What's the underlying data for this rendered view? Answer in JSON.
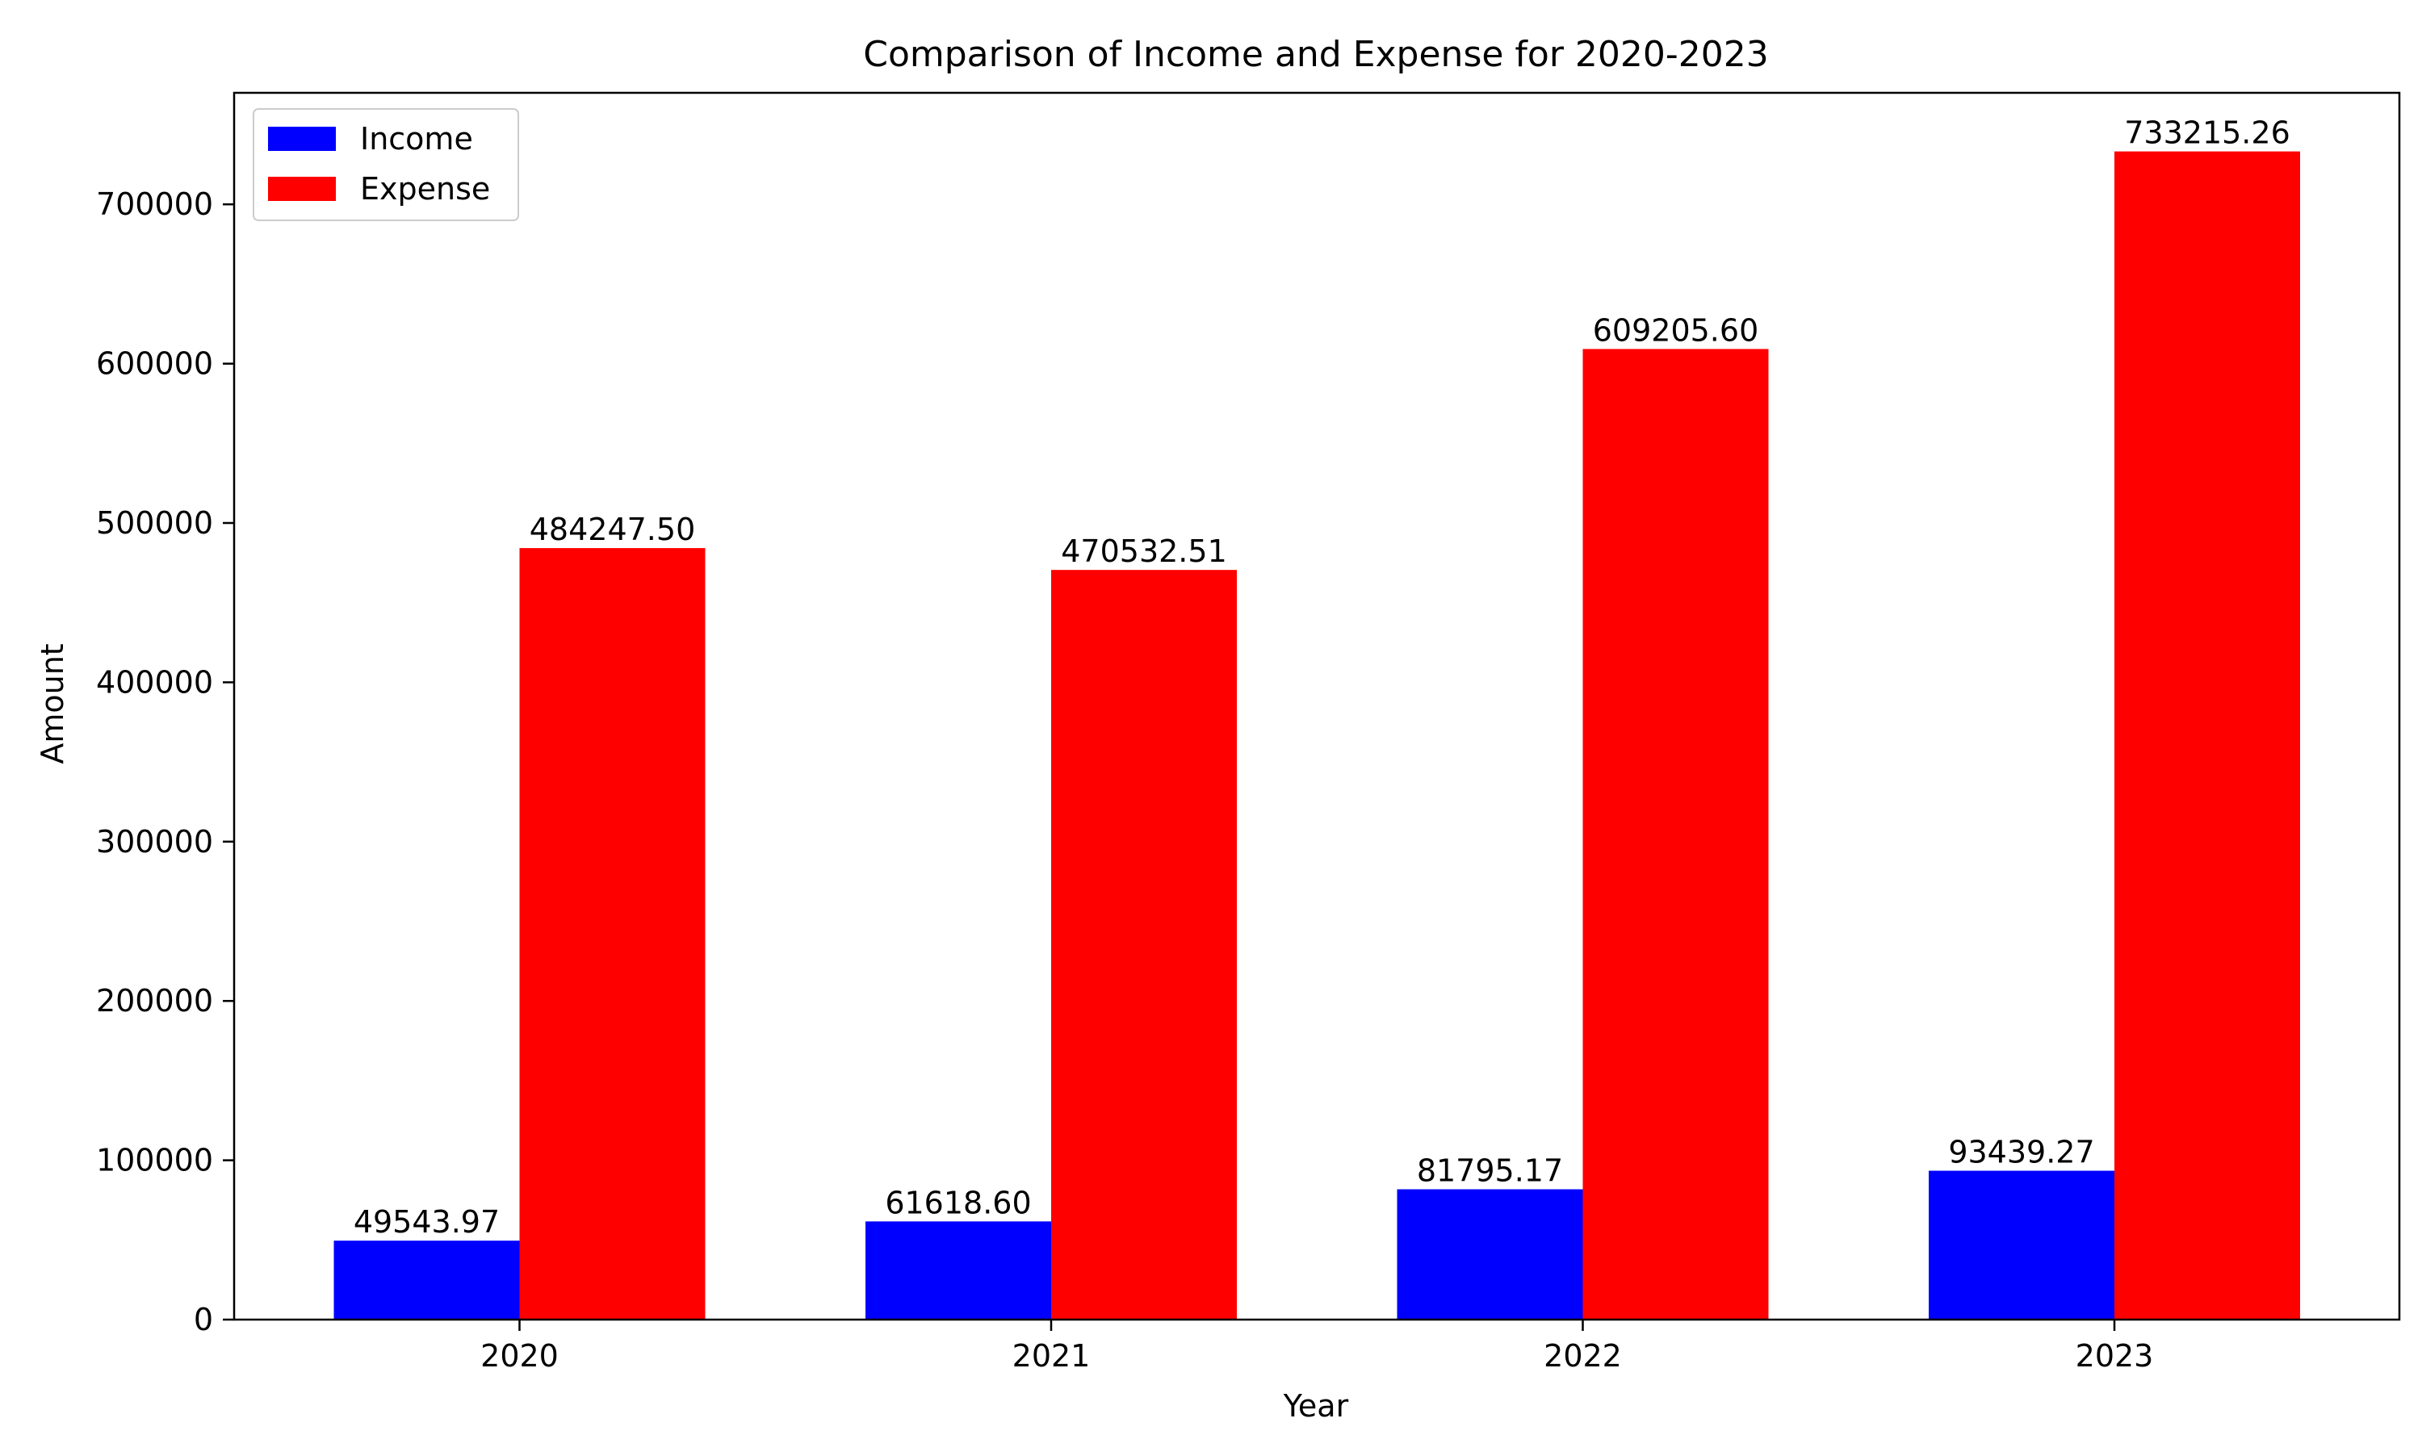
{
  "chart_data": {
    "type": "bar",
    "title": "Comparison of Income and Expense for 2020-2023",
    "xlabel": "Year",
    "ylabel": "Amount",
    "categories": [
      "2020",
      "2021",
      "2022",
      "2023"
    ],
    "ylim": [
      0,
      770000
    ],
    "yticks": [
      0,
      100000,
      200000,
      300000,
      400000,
      500000,
      600000,
      700000
    ],
    "ytick_labels": [
      "0",
      "100000",
      "200000",
      "300000",
      "400000",
      "500000",
      "600000",
      "700000"
    ],
    "legend_position": "top-left",
    "grid": false,
    "series": [
      {
        "name": "Income",
        "color": "#0000ff",
        "values": [
          49543.97,
          61618.6,
          81795.17,
          93439.27
        ],
        "labels": [
          "49543.97",
          "61618.60",
          "81795.17",
          "93439.27"
        ]
      },
      {
        "name": "Expense",
        "color": "#ff0000",
        "values": [
          484247.5,
          470532.51,
          609205.6,
          733215.26
        ],
        "labels": [
          "484247.50",
          "470532.51",
          "609205.60",
          "733215.26"
        ]
      }
    ]
  }
}
